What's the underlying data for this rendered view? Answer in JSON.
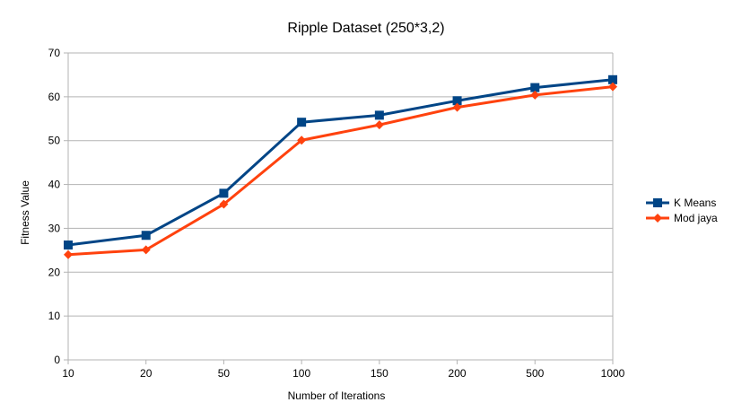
{
  "chart_data": {
    "type": "line",
    "title": "Ripple Dataset (250*3,2)",
    "xlabel": "Number of Iterations",
    "ylabel": "Fitness Value",
    "categories": [
      "10",
      "20",
      "50",
      "100",
      "150",
      "200",
      "500",
      "1000"
    ],
    "ylim": [
      0,
      70
    ],
    "yticks": [
      0,
      10,
      20,
      30,
      40,
      50,
      60,
      70
    ],
    "grid": true,
    "legend_position": "right",
    "series": [
      {
        "name": "K Means",
        "color": "#004586",
        "marker": "square",
        "values": [
          26.2,
          28.4,
          38.0,
          54.2,
          55.8,
          59.1,
          62.1,
          63.9
        ]
      },
      {
        "name": "Mod jaya",
        "color": "#ff420e",
        "marker": "diamond",
        "values": [
          24.0,
          25.1,
          35.5,
          50.1,
          53.6,
          57.6,
          60.4,
          62.3
        ]
      }
    ]
  }
}
